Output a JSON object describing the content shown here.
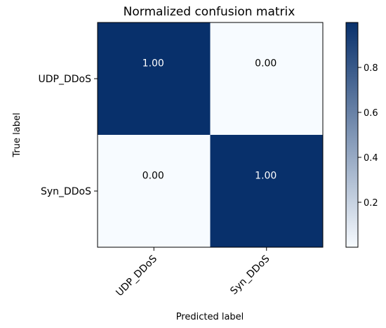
{
  "chart_data": {
    "type": "heatmap",
    "title": "Normalized confusion matrix",
    "xlabel": "Predicted label",
    "ylabel": "True label",
    "x_categories": [
      "UDP_DDoS",
      "Syn_DDoS"
    ],
    "y_categories": [
      "UDP_DDoS",
      "Syn_DDoS"
    ],
    "values": [
      [
        1.0,
        0.0
      ],
      [
        0.0,
        1.0
      ]
    ],
    "cell_labels": [
      [
        "1.00",
        "0.00"
      ],
      [
        "0.00",
        "1.00"
      ]
    ],
    "colormap": "Blues",
    "color_low": "#f7fbff",
    "color_high": "#08306b",
    "text_on_dark": "#ffffff",
    "text_on_light": "#000000",
    "colorbar": {
      "range": [
        0,
        1
      ],
      "ticks": [
        0.2,
        0.4,
        0.6,
        0.8
      ],
      "tick_labels": [
        "0.2",
        "0.4",
        "0.6",
        "0.8"
      ]
    },
    "grid": false,
    "legend": "none"
  }
}
